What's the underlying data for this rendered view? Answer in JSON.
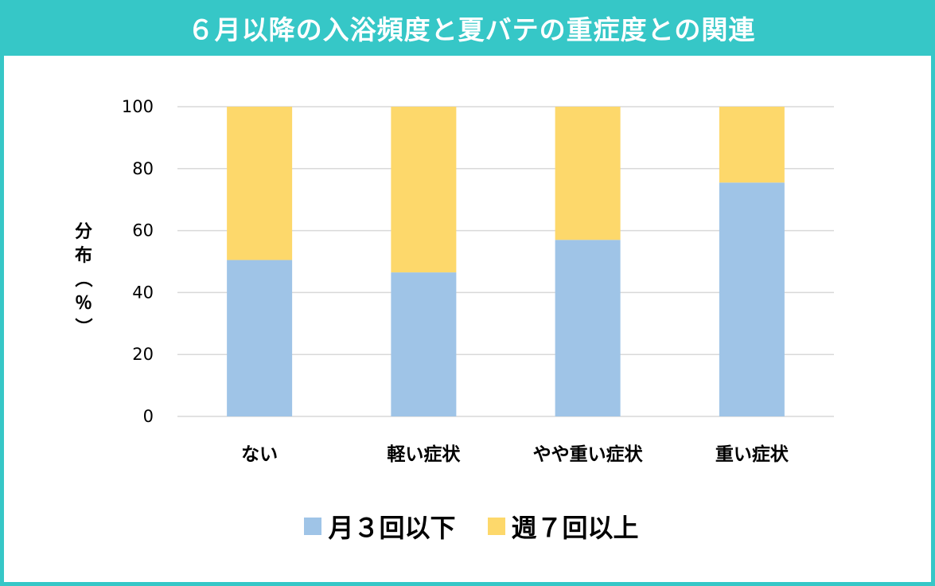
{
  "title": "６月以降の入浴頻度と夏バテの重症度との関連",
  "colors": {
    "frame": "#36c7c7",
    "series_1": "#9fc4e7",
    "series_2": "#fdd86b",
    "grid": "#d9d9d9"
  },
  "chart_data": {
    "type": "bar",
    "stacked": true,
    "categories": [
      "ない",
      "軽い症状",
      "やや重い症状",
      "重い症状"
    ],
    "series": [
      {
        "name": "月３回以下",
        "values": [
          50.5,
          46.5,
          57,
          75.5
        ]
      },
      {
        "name": "週７回以上",
        "values": [
          49.5,
          53.5,
          43,
          24.5
        ]
      }
    ],
    "ylabel": "分布（％）",
    "ylim": [
      0,
      100
    ],
    "yticks": [
      0,
      20,
      40,
      60,
      80,
      100
    ],
    "grid": true,
    "legend": "bottom"
  }
}
